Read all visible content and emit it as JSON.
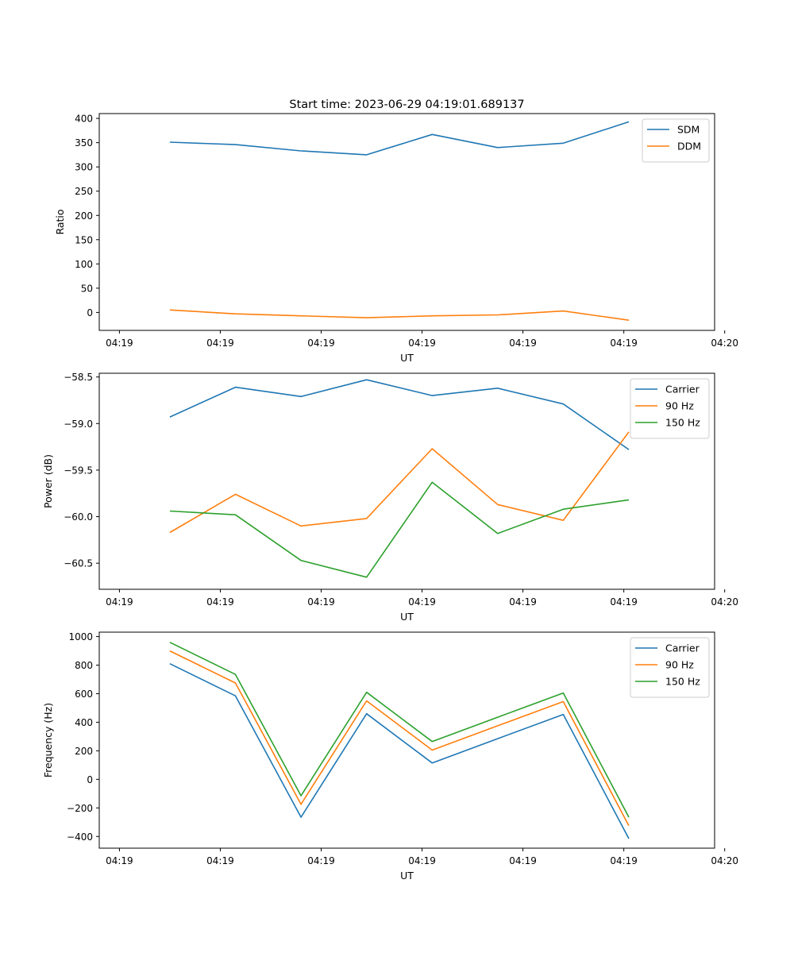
{
  "figure": {
    "title": "Start time: 2023-06-29 04:19:01.689137"
  },
  "chart_data": [
    {
      "type": "line",
      "title": "Start time: 2023-06-29 04:19:01.689137",
      "xlabel": "UT",
      "ylabel": "Ratio",
      "x_ticks": [
        "04:19",
        "04:19",
        "04:19",
        "04:19",
        "04:19",
        "04:19",
        "04:20"
      ],
      "y_ticks": [
        "0",
        "50",
        "100",
        "150",
        "200",
        "250",
        "300",
        "350",
        "400"
      ],
      "ylim": [
        -37,
        410
      ],
      "legend_position": "top-right",
      "grid": false,
      "x": [
        0.5,
        1.15,
        1.8,
        2.45,
        3.1,
        3.75,
        4.4,
        5.05
      ],
      "series": [
        {
          "name": "SDM",
          "color": "#1f77b4",
          "values": [
            351,
            346,
            333,
            325,
            367,
            340,
            349,
            393
          ]
        },
        {
          "name": "DDM",
          "color": "#ff7f0e",
          "values": [
            5,
            -3,
            -7,
            -11,
            -7,
            -5,
            3,
            -16
          ]
        }
      ]
    },
    {
      "type": "line",
      "title": "",
      "xlabel": "UT",
      "ylabel": "Power (dB)",
      "x_ticks": [
        "04:19",
        "04:19",
        "04:19",
        "04:19",
        "04:19",
        "04:19",
        "04:20"
      ],
      "y_ticks": [
        "−58.5",
        "−59.0",
        "−59.5",
        "−60.0",
        "−60.5"
      ],
      "y_tick_values": [
        -58.5,
        -59.0,
        -59.5,
        -60.0,
        -60.5
      ],
      "ylim": [
        -60.78,
        -58.46
      ],
      "legend_position": "top-right",
      "grid": false,
      "x": [
        0.5,
        1.15,
        1.8,
        2.45,
        3.1,
        3.75,
        4.4,
        5.05
      ],
      "series": [
        {
          "name": "Carrier",
          "color": "#1f77b4",
          "values": [
            -58.93,
            -58.61,
            -58.71,
            -58.53,
            -58.7,
            -58.62,
            -58.79,
            -59.28
          ]
        },
        {
          "name": "90 Hz",
          "color": "#ff7f0e",
          "values": [
            -60.17,
            -59.76,
            -60.1,
            -60.02,
            -59.27,
            -59.87,
            -60.04,
            -59.09
          ]
        },
        {
          "name": "150 Hz",
          "color": "#2ca02c",
          "values": [
            -59.94,
            -59.98,
            -60.47,
            -60.65,
            -59.63,
            -60.18,
            -59.92,
            -59.82
          ]
        }
      ]
    },
    {
      "type": "line",
      "title": "",
      "xlabel": "UT",
      "ylabel": "Frequency (Hz)",
      "x_ticks": [
        "04:19",
        "04:19",
        "04:19",
        "04:19",
        "04:19",
        "04:19",
        "04:20"
      ],
      "y_ticks": [
        "−400",
        "−200",
        "0",
        "200",
        "400",
        "600",
        "800",
        "1000"
      ],
      "y_tick_values": [
        -400,
        -200,
        0,
        200,
        400,
        600,
        800,
        1000
      ],
      "ylim": [
        -482,
        1031
      ],
      "legend_position": "top-right",
      "grid": false,
      "x": [
        0.5,
        1.15,
        1.8,
        2.45,
        3.1,
        3.75,
        4.4,
        5.05
      ],
      "series": [
        {
          "name": "Carrier",
          "color": "#1f77b4",
          "values": [
            810,
            585,
            -265,
            460,
            115,
            285,
            455,
            -415
          ]
        },
        {
          "name": "90 Hz",
          "color": "#ff7f0e",
          "values": [
            900,
            675,
            -175,
            550,
            205,
            375,
            545,
            -325
          ]
        },
        {
          "name": "150 Hz",
          "color": "#2ca02c",
          "values": [
            960,
            735,
            -115,
            610,
            265,
            435,
            605,
            -265
          ]
        }
      ]
    }
  ]
}
